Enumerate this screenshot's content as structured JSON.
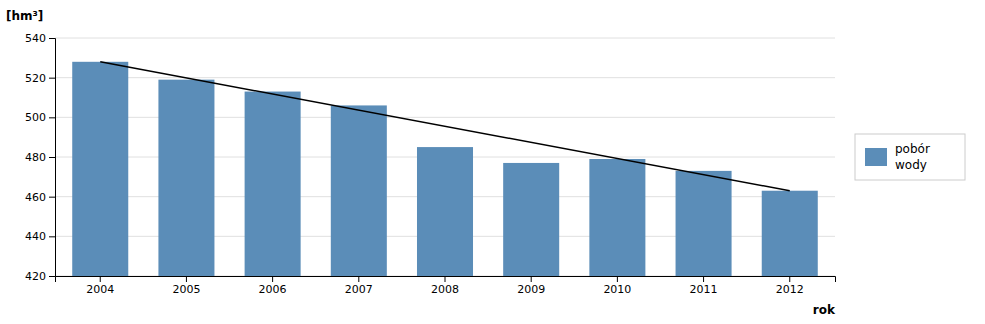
{
  "chart_data": {
    "type": "bar",
    "categories": [
      "2004",
      "2005",
      "2006",
      "2007",
      "2008",
      "2009",
      "2010",
      "2011",
      "2012"
    ],
    "series": [
      {
        "name": "pobór\nwody",
        "color": "#5B8DB8",
        "values": [
          528,
          519,
          513,
          506,
          485,
          477,
          479,
          473,
          463
        ]
      }
    ],
    "trend_line": {
      "start": 528,
      "end": 463,
      "color": "black"
    },
    "xlabel": "rok",
    "ylabel": "[hm³]",
    "ylim": [
      420,
      540
    ],
    "yticks": [
      420,
      440,
      460,
      480,
      500,
      520,
      540
    ],
    "grid": true,
    "legend": "right"
  }
}
